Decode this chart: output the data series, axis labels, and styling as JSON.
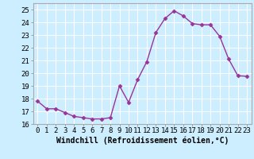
{
  "x": [
    0,
    1,
    2,
    3,
    4,
    5,
    6,
    7,
    8,
    9,
    10,
    11,
    12,
    13,
    14,
    15,
    16,
    17,
    18,
    19,
    20,
    21,
    22,
    23
  ],
  "y": [
    17.8,
    17.2,
    17.2,
    16.9,
    16.6,
    16.5,
    16.4,
    16.4,
    16.5,
    19.0,
    17.7,
    19.5,
    20.9,
    23.2,
    24.3,
    24.9,
    24.5,
    23.9,
    23.8,
    23.8,
    22.9,
    21.1,
    19.8,
    19.75
  ],
  "line_color": "#993399",
  "marker": "D",
  "marker_size": 2.5,
  "line_width": 1.0,
  "bg_color": "#cceeff",
  "grid_color": "#ffffff",
  "xlabel": "Windchill (Refroidissement éolien,°C)",
  "xlabel_fontsize": 7,
  "tick_fontsize": 6.5,
  "ylim": [
    16,
    25.5
  ],
  "yticks": [
    16,
    17,
    18,
    19,
    20,
    21,
    22,
    23,
    24,
    25
  ],
  "xticks": [
    0,
    1,
    2,
    3,
    4,
    5,
    6,
    7,
    8,
    9,
    10,
    11,
    12,
    13,
    14,
    15,
    16,
    17,
    18,
    19,
    20,
    21,
    22,
    23
  ],
  "xlim": [
    -0.5,
    23.5
  ]
}
